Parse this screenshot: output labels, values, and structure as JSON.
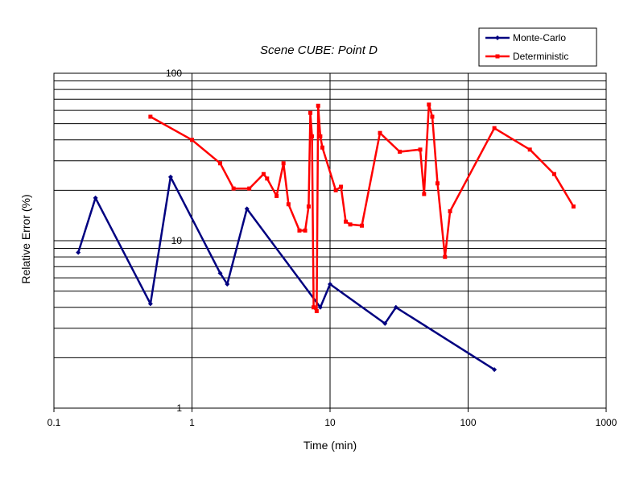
{
  "chart_data": {
    "type": "line",
    "title": "Scene CUBE:  Point D",
    "xlabel": "Time (min)",
    "ylabel": "Relative Error (%)",
    "xscale": "log",
    "yscale": "log",
    "xlim": [
      0.1,
      1000
    ],
    "ylim": [
      1,
      100
    ],
    "x_tick_labels": [
      "0.1",
      "1",
      "10",
      "100",
      "1000"
    ],
    "y_tick_labels": [
      "1",
      "10",
      "100"
    ],
    "grid": "horizontal major and minor",
    "legend_position": "top-right",
    "series": [
      {
        "name": "Monte-Carlo",
        "color": "#000080",
        "marker": "diamond",
        "points": [
          [
            0.15,
            8.5
          ],
          [
            0.2,
            18
          ],
          [
            0.5,
            4.2
          ],
          [
            0.7,
            24
          ],
          [
            1.6,
            6.4
          ],
          [
            1.8,
            5.5
          ],
          [
            2.5,
            15.5
          ],
          [
            8.5,
            4.0
          ],
          [
            10,
            5.5
          ],
          [
            25,
            3.2
          ],
          [
            30,
            4.0
          ],
          [
            155,
            1.7
          ]
        ]
      },
      {
        "name": "Deterministic",
        "color": "#ff0000",
        "marker": "square",
        "points": [
          [
            0.5,
            55
          ],
          [
            1,
            40
          ],
          [
            1.6,
            29
          ],
          [
            2,
            20.5
          ],
          [
            2.6,
            20.5
          ],
          [
            3.3,
            25
          ],
          [
            3.5,
            23.5
          ],
          [
            4.1,
            18.5
          ],
          [
            4.6,
            29
          ],
          [
            5,
            16.5
          ],
          [
            6,
            11.5
          ],
          [
            6.6,
            11.5
          ],
          [
            7,
            16
          ],
          [
            7.2,
            58
          ],
          [
            7.4,
            42
          ],
          [
            7.6,
            4.0
          ],
          [
            8.0,
            3.8
          ],
          [
            8.2,
            64
          ],
          [
            8.5,
            42
          ],
          [
            8.8,
            36
          ],
          [
            11,
            20
          ],
          [
            12,
            21
          ],
          [
            13,
            13
          ],
          [
            14,
            12.5
          ],
          [
            17,
            12.3
          ],
          [
            23,
            44
          ],
          [
            32,
            34
          ],
          [
            45,
            35
          ],
          [
            48,
            19
          ],
          [
            52,
            65
          ],
          [
            55,
            55
          ],
          [
            60,
            22
          ],
          [
            68,
            8.0
          ],
          [
            74,
            15
          ],
          [
            155,
            47
          ],
          [
            280,
            35
          ],
          [
            420,
            25
          ],
          [
            580,
            16
          ]
        ]
      }
    ]
  }
}
